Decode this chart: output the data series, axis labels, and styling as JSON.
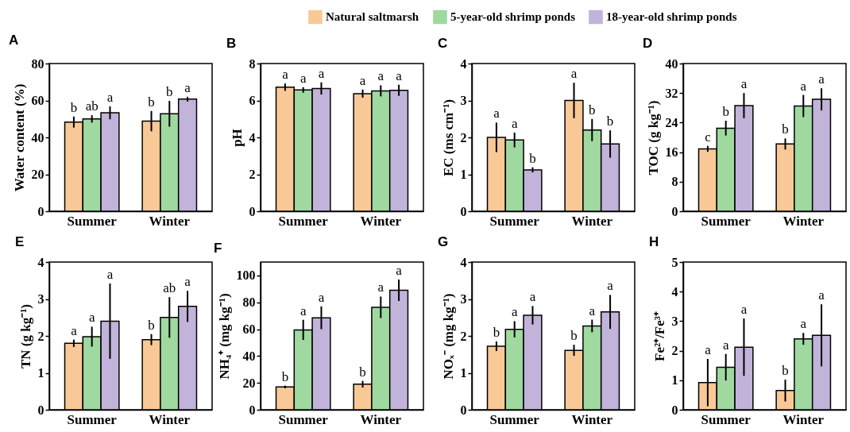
{
  "chart_data": [
    {
      "type": "bar",
      "title": "A",
      "ylabel": "Water content (%)",
      "categories": [
        "Summer",
        "Winter"
      ],
      "ylim": [
        0,
        80
      ],
      "yticks": [
        0,
        20,
        40,
        60,
        80
      ],
      "legend": "top right",
      "series": [
        {
          "name": "Natural saltmarsh",
          "color": "#f9c897",
          "values": [
            48.3,
            48.8
          ],
          "errors": [
            3,
            5.5
          ],
          "value_labels": [
            "b",
            "b"
          ]
        },
        {
          "name": "5-year-old shrimp ponds",
          "color": "#9fd9a0",
          "values": [
            50,
            52.8
          ],
          "errors": [
            2,
            7
          ],
          "value_labels": [
            "ab",
            "b"
          ]
        },
        {
          "name": "18-year-old shrimp ponds",
          "color": "#c1b3d9",
          "values": [
            53.3,
            60.7
          ],
          "errors": [
            3.5,
            1.3
          ],
          "value_labels": [
            "a",
            "a"
          ]
        }
      ]
    },
    {
      "type": "bar",
      "title": "B",
      "ylabel": "pH",
      "categories": [
        "Summer",
        "Winter"
      ],
      "ylim": [
        0,
        8
      ],
      "yticks": [
        0,
        2,
        4,
        6,
        8
      ],
      "series": [
        {
          "color": "#f9c897",
          "values": [
            6.72,
            6.37
          ],
          "errors": [
            0.2,
            0.22
          ],
          "value_labels": [
            "a",
            "a"
          ]
        },
        {
          "color": "#9fd9a0",
          "values": [
            6.57,
            6.52
          ],
          "errors": [
            0.15,
            0.3
          ],
          "value_labels": [
            "a",
            "a"
          ]
        },
        {
          "color": "#c1b3d9",
          "values": [
            6.65,
            6.55
          ],
          "errors": [
            0.33,
            0.3
          ],
          "value_labels": [
            "a",
            "a"
          ]
        }
      ]
    },
    {
      "type": "bar",
      "title": "C",
      "ylabel": "EC (ms cm⁻¹)",
      "categories": [
        "Summer",
        "Winter"
      ],
      "ylim": [
        0,
        4
      ],
      "yticks": [
        0,
        1,
        2,
        3,
        4
      ],
      "series": [
        {
          "color": "#f9c897",
          "values": [
            2.0,
            3.0
          ],
          "errors": [
            0.4,
            0.48
          ],
          "value_labels": [
            "a",
            "a"
          ]
        },
        {
          "color": "#9fd9a0",
          "values": [
            1.93,
            2.2
          ],
          "errors": [
            0.2,
            0.3
          ],
          "value_labels": [
            "a",
            "b"
          ]
        },
        {
          "color": "#c1b3d9",
          "values": [
            1.12,
            1.82
          ],
          "errors": [
            0.07,
            0.37
          ],
          "value_labels": [
            "b",
            "b"
          ]
        }
      ]
    },
    {
      "type": "bar",
      "title": "D",
      "ylabel": "TOC (g kg⁻¹)",
      "categories": [
        "Summer",
        "Winter"
      ],
      "ylim": [
        0,
        40
      ],
      "yticks": [
        0,
        8,
        16,
        24,
        32,
        40
      ],
      "series": [
        {
          "color": "#f9c897",
          "values": [
            16.9,
            18.2
          ],
          "errors": [
            0.8,
            1.5
          ],
          "value_labels": [
            "c",
            "b"
          ]
        },
        {
          "color": "#9fd9a0",
          "values": [
            22.5,
            28.5
          ],
          "errors": [
            2,
            3
          ],
          "value_labels": [
            "b",
            "a"
          ]
        },
        {
          "color": "#c1b3d9",
          "values": [
            28.6,
            30.3
          ],
          "errors": [
            3.4,
            3
          ],
          "value_labels": [
            "a",
            "a"
          ]
        }
      ]
    },
    {
      "type": "bar",
      "title": "E",
      "ylabel": "TN (g kg⁻¹)",
      "categories": [
        "Summer",
        "Winter"
      ],
      "ylim": [
        0,
        4
      ],
      "yticks": [
        0,
        1,
        2,
        3,
        4
      ],
      "series": [
        {
          "color": "#f9c897",
          "values": [
            1.8,
            1.9
          ],
          "errors": [
            0.1,
            0.15
          ],
          "value_labels": [
            "a",
            "b"
          ]
        },
        {
          "color": "#9fd9a0",
          "values": [
            1.98,
            2.5
          ],
          "errors": [
            0.27,
            0.55
          ],
          "value_labels": [
            "a",
            "ab"
          ]
        },
        {
          "color": "#c1b3d9",
          "values": [
            2.4,
            2.8
          ],
          "errors": [
            1.02,
            0.42
          ],
          "value_labels": [
            "a",
            "a"
          ]
        }
      ]
    },
    {
      "type": "bar",
      "title": "F",
      "ylabel": "NH₄⁺ (mg kg⁻¹)",
      "categories": [
        "Summer",
        "Winter"
      ],
      "ylim": [
        0,
        110
      ],
      "yticks": [
        0,
        20,
        40,
        60,
        80,
        100
      ],
      "series": [
        {
          "color": "#f9c897",
          "values": [
            17,
            19
          ],
          "errors": [
            1,
            2.5
          ],
          "value_labels": [
            "b",
            "b"
          ]
        },
        {
          "color": "#9fd9a0",
          "values": [
            59.5,
            76.3
          ],
          "errors": [
            7.5,
            8
          ],
          "value_labels": [
            "a",
            "a"
          ]
        },
        {
          "color": "#c1b3d9",
          "values": [
            68.5,
            89
          ],
          "errors": [
            8.5,
            8
          ],
          "value_labels": [
            "a",
            "a"
          ]
        }
      ]
    },
    {
      "type": "bar",
      "title": "G",
      "ylabel": "NOₓ⁻ (mg kg⁻¹)",
      "categories": [
        "Summer",
        "Winter"
      ],
      "ylim": [
        0,
        4
      ],
      "yticks": [
        0,
        1,
        2,
        3,
        4
      ],
      "series": [
        {
          "color": "#f9c897",
          "values": [
            1.72,
            1.61
          ],
          "errors": [
            0.13,
            0.15
          ],
          "value_labels": [
            "b",
            "b"
          ]
        },
        {
          "color": "#9fd9a0",
          "values": [
            2.18,
            2.27
          ],
          "errors": [
            0.22,
            0.17
          ],
          "value_labels": [
            "a",
            "a"
          ]
        },
        {
          "color": "#c1b3d9",
          "values": [
            2.56,
            2.65
          ],
          "errors": [
            0.25,
            0.46
          ],
          "value_labels": [
            "a",
            "a"
          ]
        }
      ]
    },
    {
      "type": "bar",
      "title": "H",
      "ylabel": "Fe²⁺/Fe³⁺",
      "categories": [
        "Summer",
        "Winter"
      ],
      "ylim": [
        0,
        5
      ],
      "yticks": [
        0,
        1,
        2,
        3,
        4,
        5
      ],
      "series": [
        {
          "color": "#f9c897",
          "values": [
            0.92,
            0.65
          ],
          "errors": [
            0.8,
            0.37
          ],
          "value_labels": [
            "a",
            "b"
          ]
        },
        {
          "color": "#9fd9a0",
          "values": [
            1.44,
            2.4
          ],
          "errors": [
            0.45,
            0.2
          ],
          "value_labels": [
            "a",
            "a"
          ]
        },
        {
          "color": "#c1b3d9",
          "values": [
            2.12,
            2.52
          ],
          "errors": [
            0.97,
            1.05
          ],
          "value_labels": [
            "a",
            "a"
          ]
        }
      ]
    }
  ]
}
